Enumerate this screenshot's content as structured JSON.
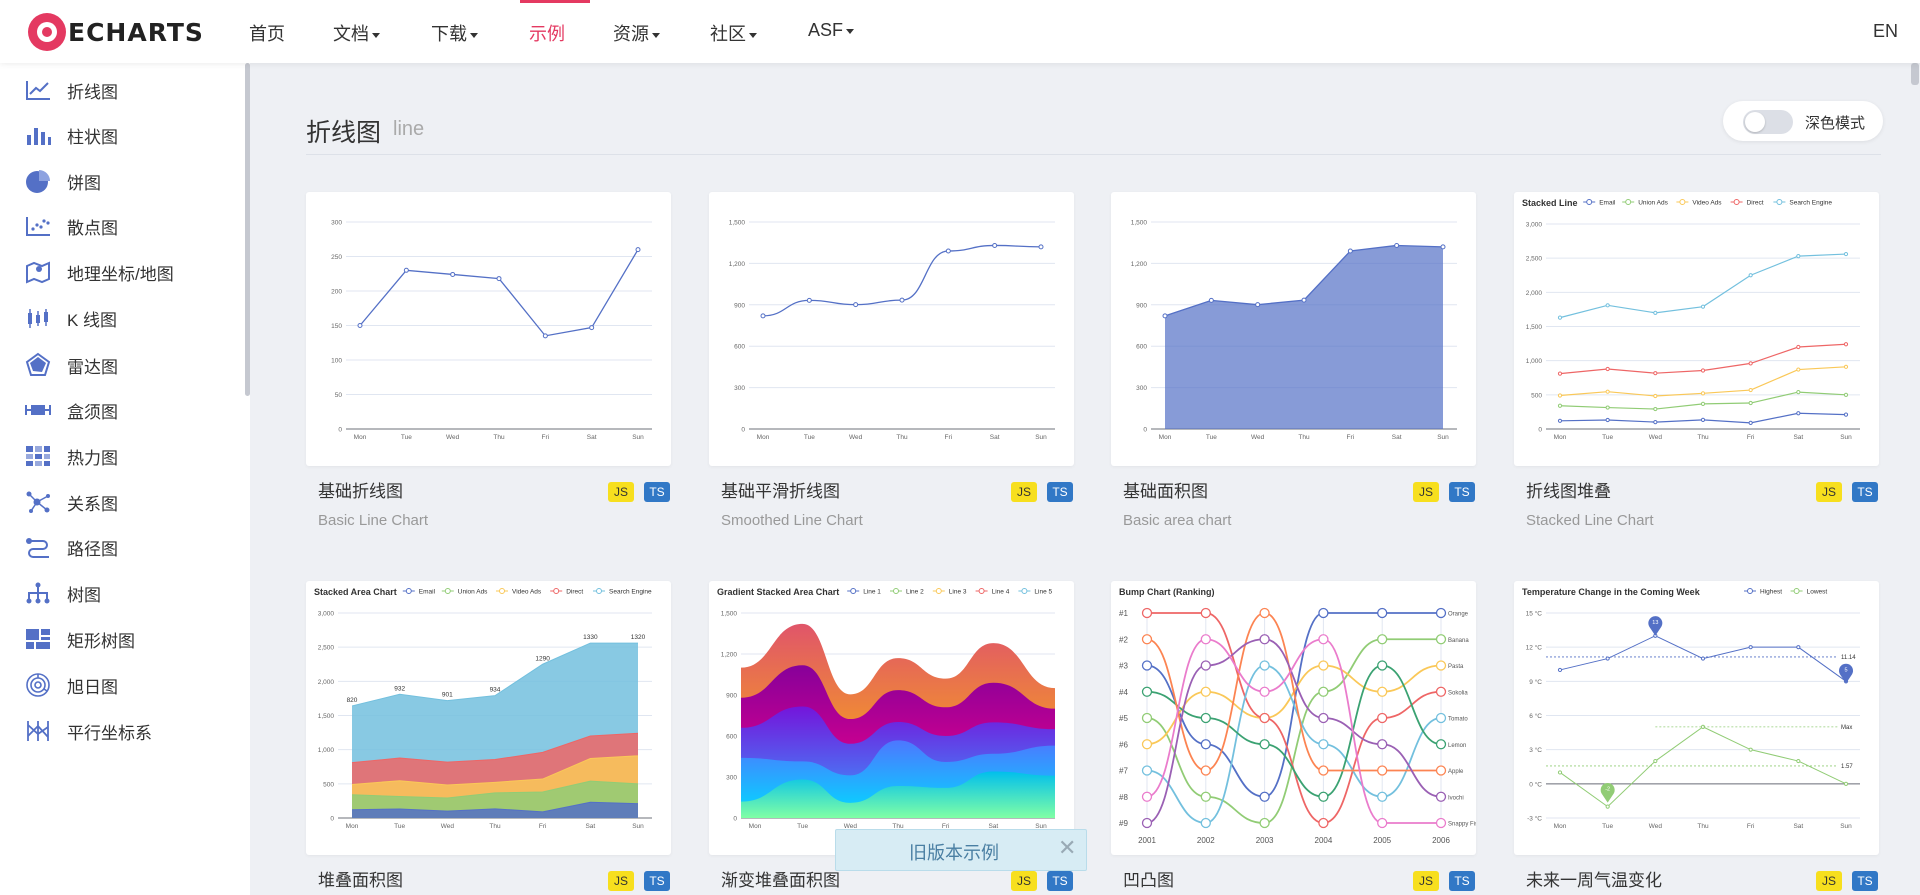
{
  "brand": {
    "logo_text": "ECHARTS"
  },
  "nav": {
    "items": [
      {
        "label": "首页",
        "dropdown": false
      },
      {
        "label": "文档",
        "dropdown": true
      },
      {
        "label": "下载",
        "dropdown": true
      },
      {
        "label": "示例",
        "dropdown": false,
        "active": true
      },
      {
        "label": "资源",
        "dropdown": true
      },
      {
        "label": "社区",
        "dropdown": true
      },
      {
        "label": "ASF",
        "dropdown": true
      }
    ],
    "lang": "EN"
  },
  "sidebar": {
    "items": [
      {
        "label": "折线图",
        "icon": "line-chart-icon"
      },
      {
        "label": "柱状图",
        "icon": "bar-chart-icon"
      },
      {
        "label": "饼图",
        "icon": "pie-chart-icon"
      },
      {
        "label": "散点图",
        "icon": "scatter-chart-icon"
      },
      {
        "label": "地理坐标/地图",
        "icon": "map-icon"
      },
      {
        "label": "K 线图",
        "icon": "candlestick-icon"
      },
      {
        "label": "雷达图",
        "icon": "radar-icon"
      },
      {
        "label": "盒须图",
        "icon": "boxplot-icon"
      },
      {
        "label": "热力图",
        "icon": "heatmap-icon"
      },
      {
        "label": "关系图",
        "icon": "graph-icon"
      },
      {
        "label": "路径图",
        "icon": "lines-icon"
      },
      {
        "label": "树图",
        "icon": "tree-icon"
      },
      {
        "label": "矩形树图",
        "icon": "treemap-icon"
      },
      {
        "label": "旭日图",
        "icon": "sunburst-icon"
      },
      {
        "label": "平行坐标系",
        "icon": "parallel-icon"
      }
    ]
  },
  "section": {
    "title": "折线图",
    "subtitle": "line"
  },
  "dark_mode": {
    "label": "深色模式",
    "enabled": false
  },
  "badges": {
    "js": "JS",
    "ts": "TS"
  },
  "cards": [
    {
      "title": "基础折线图",
      "subtitle": "Basic Line Chart"
    },
    {
      "title": "基础平滑折线图",
      "subtitle": "Smoothed Line Chart"
    },
    {
      "title": "基础面积图",
      "subtitle": "Basic area chart"
    },
    {
      "title": "折线图堆叠",
      "subtitle": "Stacked Line Chart"
    },
    {
      "title": "堆叠面积图",
      "subtitle": ""
    },
    {
      "title": "渐变堆叠面积图",
      "subtitle": ""
    },
    {
      "title": "凹凸图",
      "subtitle": ""
    },
    {
      "title": "未来一周气温变化",
      "subtitle": ""
    }
  ],
  "old_version": {
    "label": "旧版本示例",
    "close": "✕"
  },
  "colors": {
    "accent": "#e43961",
    "series_blue": "#5470c6",
    "series_green": "#91cc75",
    "series_yellow": "#fac858",
    "series_red": "#ee6666",
    "series_cyan": "#73c0de"
  },
  "chart_data": [
    {
      "type": "line",
      "categories": [
        "Mon",
        "Tue",
        "Wed",
        "Thu",
        "Fri",
        "Sat",
        "Sun"
      ],
      "values": [
        150,
        230,
        224,
        218,
        135,
        147,
        260
      ],
      "ylim": [
        0,
        300
      ],
      "yticks": [
        "0",
        "50",
        "100",
        "150",
        "200",
        "250",
        "300"
      ]
    },
    {
      "type": "line",
      "smooth": true,
      "categories": [
        "Mon",
        "Tue",
        "Wed",
        "Thu",
        "Fri",
        "Sat",
        "Sun"
      ],
      "values": [
        820,
        932,
        901,
        934,
        1290,
        1330,
        1320
      ],
      "ylim": [
        0,
        1500
      ],
      "yticks": [
        "0",
        "300",
        "600",
        "900",
        "1,200",
        "1,500"
      ]
    },
    {
      "type": "area",
      "categories": [
        "Mon",
        "Tue",
        "Wed",
        "Thu",
        "Fri",
        "Sat",
        "Sun"
      ],
      "values": [
        820,
        932,
        901,
        934,
        1290,
        1330,
        1320
      ],
      "ylim": [
        0,
        1500
      ],
      "yticks": [
        "0",
        "300",
        "600",
        "900",
        "1,200",
        "1,500"
      ]
    },
    {
      "type": "line",
      "title": "Stacked Line",
      "categories": [
        "Mon",
        "Tue",
        "Wed",
        "Thu",
        "Fri",
        "Sat",
        "Sun"
      ],
      "ylim": [
        0,
        3000
      ],
      "yticks": [
        "0",
        "500",
        "1,000",
        "1,500",
        "2,000",
        "2,500",
        "3,000"
      ],
      "legend": "top",
      "series": [
        {
          "name": "Email",
          "values": [
            120,
            132,
            101,
            134,
            90,
            230,
            210
          ]
        },
        {
          "name": "Union Ads",
          "values": [
            340,
            314,
            292,
            368,
            380,
            540,
            500
          ]
        },
        {
          "name": "Video Ads",
          "values": [
            490,
            546,
            483,
            522,
            570,
            870,
            910
          ]
        },
        {
          "name": "Direct",
          "values": [
            810,
            878,
            817,
            856,
            960,
            1200,
            1240
          ]
        },
        {
          "name": "Search Engine",
          "values": [
            1630,
            1810,
            1700,
            1790,
            2250,
            2530,
            2560
          ]
        }
      ]
    },
    {
      "type": "area",
      "title": "Stacked Area Chart",
      "categories": [
        "Mon",
        "Tue",
        "Wed",
        "Thu",
        "Fri",
        "Sat",
        "Sun"
      ],
      "ylim": [
        0,
        3000
      ],
      "yticks": [
        "0",
        "500",
        "1,000",
        "1,500",
        "2,000",
        "2,500",
        "3,000"
      ],
      "legend": "top",
      "top_labels": [
        "820",
        "932",
        "901",
        "934",
        "1290",
        "1330",
        "1320"
      ],
      "series": [
        {
          "name": "Email",
          "values": [
            120,
            132,
            101,
            134,
            90,
            230,
            210
          ]
        },
        {
          "name": "Union Ads",
          "values": [
            340,
            314,
            292,
            368,
            380,
            540,
            500
          ]
        },
        {
          "name": "Video Ads",
          "values": [
            490,
            546,
            483,
            522,
            570,
            870,
            910
          ]
        },
        {
          "name": "Direct",
          "values": [
            810,
            878,
            817,
            856,
            960,
            1200,
            1240
          ]
        },
        {
          "name": "Search Engine",
          "values": [
            1640,
            1810,
            1718,
            1790,
            2250,
            2560,
            2560
          ]
        }
      ]
    },
    {
      "type": "area",
      "title": "Gradient Stacked Area Chart",
      "categories": [
        "Mon",
        "Tue",
        "Wed",
        "Thu",
        "Fri",
        "Sat",
        "Sun"
      ],
      "ylim": [
        0,
        1500
      ],
      "yticks": [
        "0",
        "300",
        "600",
        "900",
        "1,200",
        "1,500"
      ],
      "legend": "top",
      "series": [
        {
          "name": "Line 1",
          "values": [
            120,
            282,
            111,
            234,
            220,
            340,
            310
          ]
        },
        {
          "name": "Line 2",
          "values": [
            320,
            132,
            201,
            334,
            190,
            130,
            220
          ]
        },
        {
          "name": "Line 3",
          "values": [
            220,
            402,
            231,
            134,
            190,
            230,
            120
          ]
        },
        {
          "name": "Line 4",
          "values": [
            220,
            302,
            181,
            234,
            210,
            290,
            150
          ]
        },
        {
          "name": "Line 5",
          "values": [
            220,
            302,
            181,
            234,
            210,
            290,
            150
          ]
        }
      ]
    },
    {
      "type": "line",
      "title": "Bump Chart (Ranking)",
      "categories": [
        "2001",
        "2002",
        "2003",
        "2004",
        "2005",
        "2006"
      ],
      "yticks": [
        "#1",
        "#2",
        "#3",
        "#4",
        "#5",
        "#6",
        "#7",
        "#8",
        "#9"
      ],
      "series": [
        {
          "name": "Orange",
          "values": [
            3,
            6,
            8,
            1,
            1,
            1
          ]
        },
        {
          "name": "Banana",
          "values": [
            5,
            8,
            9,
            4,
            2,
            2
          ]
        },
        {
          "name": "Pasta",
          "values": [
            6,
            4,
            5,
            3,
            4,
            3
          ]
        },
        {
          "name": "Sokolia",
          "values": [
            1,
            1,
            5,
            9,
            5,
            4
          ]
        },
        {
          "name": "Tomato",
          "values": [
            7,
            9,
            3,
            6,
            8,
            5
          ]
        },
        {
          "name": "Lemon",
          "values": [
            4,
            5,
            6,
            8,
            3,
            6
          ]
        },
        {
          "name": "Apple",
          "values": [
            2,
            7,
            1,
            7,
            7,
            7
          ]
        },
        {
          "name": "Ivochi",
          "values": [
            9,
            3,
            2,
            5,
            6,
            8
          ]
        },
        {
          "name": "Snappy Fish",
          "values": [
            8,
            2,
            4,
            2,
            9,
            9
          ]
        }
      ]
    },
    {
      "type": "line",
      "title": "Temperature Change in the Coming Week",
      "categories": [
        "Mon",
        "Tue",
        "Wed",
        "Thu",
        "Fri",
        "Sat",
        "Sun"
      ],
      "ylim": [
        -3,
        15
      ],
      "yticks": [
        "-3 °C",
        "0 °C",
        "3 °C",
        "6 °C",
        "9 °C",
        "12 °C",
        "15 °C"
      ],
      "legend": "top",
      "annotations": [
        "13",
        "5",
        "-2",
        "11.14",
        "1.57",
        "Max"
      ],
      "series": [
        {
          "name": "Highest",
          "values": [
            10,
            11,
            13,
            11,
            12,
            12,
            9
          ]
        },
        {
          "name": "Lowest",
          "values": [
            1,
            -2,
            2,
            5,
            3,
            2,
            0
          ]
        }
      ]
    }
  ]
}
